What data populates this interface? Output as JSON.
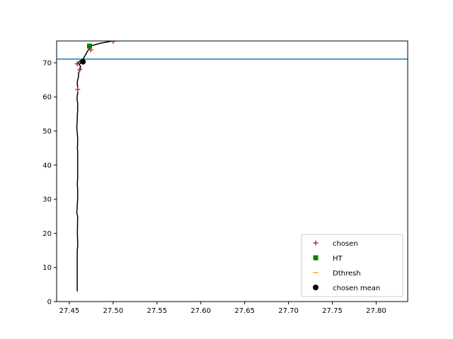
{
  "chart_data": {
    "type": "line",
    "title": "",
    "xlabel": "",
    "ylabel": "",
    "xlim": [
      27.4355,
      27.836
    ],
    "ylim": [
      0,
      76.4
    ],
    "x_ticks": [
      "27.45",
      "27.50",
      "27.55",
      "27.60",
      "27.65",
      "27.70",
      "27.75",
      "27.80"
    ],
    "y_ticks": [
      "0",
      "10",
      "20",
      "30",
      "40",
      "50",
      "60",
      "70"
    ],
    "grid": false,
    "legend_position": "lower right",
    "colors": {
      "profile": "#000000",
      "hline": "#1f77b4",
      "chosen": "#d62728",
      "ht": "#008000",
      "dthresh": "#ffa500",
      "chosen_mean": "#000000"
    },
    "hline_y": 71.1,
    "profile": {
      "x": [
        27.459,
        27.459,
        27.459,
        27.459,
        27.459,
        27.4595,
        27.4595,
        27.4592,
        27.4595,
        27.4585,
        27.4595,
        27.4595,
        27.4592,
        27.4592,
        27.4595,
        27.4595,
        27.4595,
        27.4592,
        27.4594,
        27.4595,
        27.4585,
        27.459,
        27.4592,
        27.4596,
        27.4594,
        27.4596,
        27.459,
        27.4588,
        27.4595,
        27.4595,
        27.4595,
        27.459,
        27.4595,
        27.4605,
        27.4605,
        27.4625,
        27.4628,
        27.461,
        27.463,
        27.462,
        27.46,
        27.4605,
        27.4608,
        27.4612,
        27.4655,
        27.471,
        27.475,
        27.485,
        27.495,
        27.5
      ],
      "y": [
        3,
        5,
        10,
        13,
        15,
        16,
        17,
        20,
        25,
        26,
        30,
        33,
        34,
        35,
        36,
        40,
        44,
        45,
        46,
        48,
        51,
        53,
        55,
        56,
        57,
        58,
        59,
        60,
        61,
        62,
        63,
        64,
        65,
        66,
        67,
        68,
        69,
        69.5,
        70,
        69.7,
        69.8,
        70.1,
        70.2,
        70.4,
        71,
        73.5,
        75,
        75.7,
        76.2,
        76.4
      ]
    },
    "series": [
      {
        "name": "chosen",
        "marker": "plus",
        "points": [
          [
            27.4595,
            62.2
          ],
          [
            27.459,
            69.7
          ],
          [
            27.4618,
            68.0
          ],
          [
            27.4745,
            73.8
          ],
          [
            27.5,
            76.3
          ]
        ]
      },
      {
        "name": "HT",
        "marker": "square",
        "points": [
          [
            27.473,
            74.9
          ]
        ]
      },
      {
        "name": "Dthresh",
        "marker": "hline",
        "points": []
      },
      {
        "name": "chosen mean",
        "marker": "circle",
        "points": [
          [
            27.4655,
            70.3
          ]
        ]
      }
    ]
  }
}
